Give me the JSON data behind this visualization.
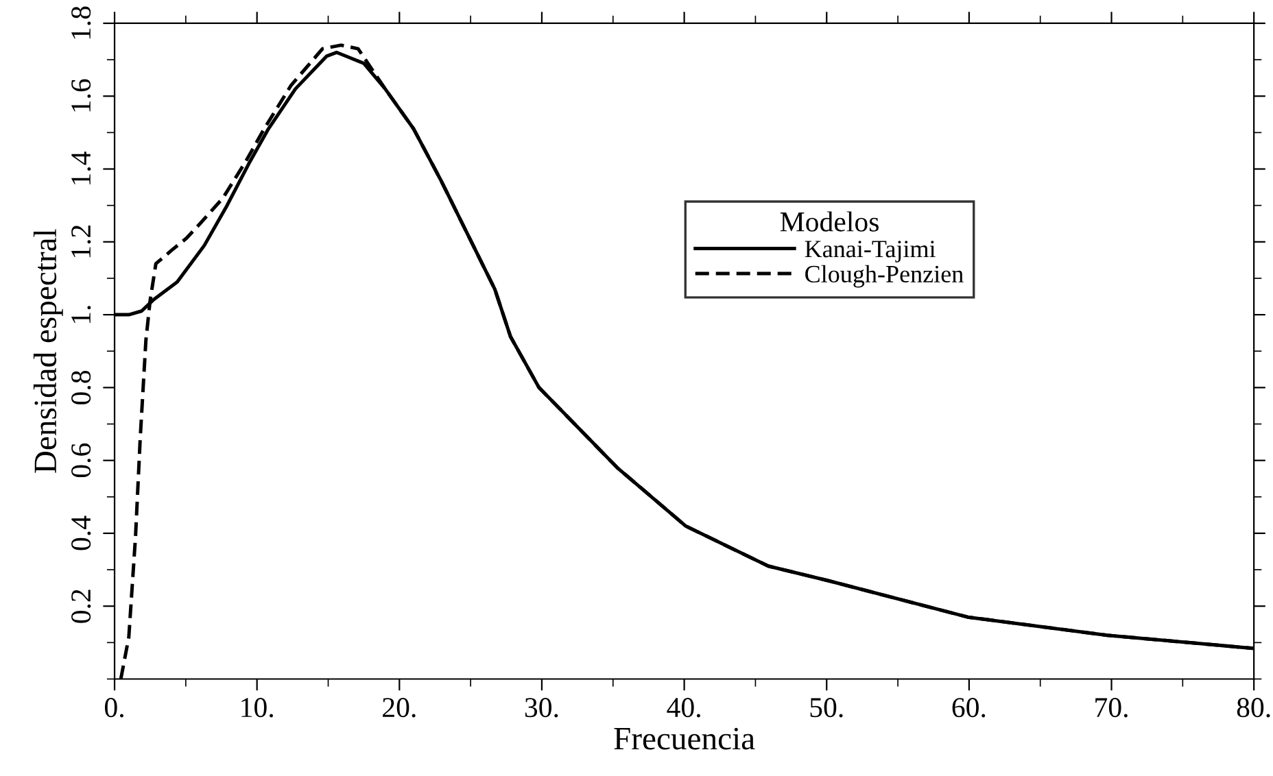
{
  "chart_data": {
    "type": "line",
    "xlabel": "Frecuencia",
    "ylabel": "Densidad espectral",
    "legend_title": "Modelos",
    "xlim": [
      0,
      80
    ],
    "ylim": [
      0,
      1.8
    ],
    "xticks": [
      {
        "value": 0,
        "label": "0."
      },
      {
        "value": 5,
        "label": null
      },
      {
        "value": 10,
        "label": "10."
      },
      {
        "value": 15,
        "label": null
      },
      {
        "value": 20,
        "label": "20."
      },
      {
        "value": 25,
        "label": null
      },
      {
        "value": 30,
        "label": "30."
      },
      {
        "value": 35,
        "label": null
      },
      {
        "value": 40,
        "label": "40."
      },
      {
        "value": 45,
        "label": null
      },
      {
        "value": 50,
        "label": "50."
      },
      {
        "value": 55,
        "label": null
      },
      {
        "value": 60,
        "label": "60."
      },
      {
        "value": 65,
        "label": null
      },
      {
        "value": 70,
        "label": "70."
      },
      {
        "value": 75,
        "label": null
      },
      {
        "value": 80,
        "label": "80."
      }
    ],
    "yticks": [
      {
        "value": 0,
        "label": null
      },
      {
        "value": 0.1,
        "label": null
      },
      0.2,
      {
        "value": 0.3,
        "label": null
      },
      0.4,
      {
        "value": 0.5,
        "label": null
      },
      0.6,
      {
        "value": 0.7,
        "label": null
      },
      0.8,
      {
        "value": 0.9,
        "label": null
      },
      {
        "value": 1.0,
        "label": "1."
      },
      {
        "value": 1.1,
        "label": null
      },
      1.2,
      {
        "value": 1.3,
        "label": null
      },
      1.4,
      {
        "value": 1.5,
        "label": null
      },
      1.6,
      {
        "value": 1.7,
        "label": null
      },
      1.8
    ],
    "legend": "right",
    "grid": false,
    "marker": "none",
    "series": [
      {
        "name": "Kanai-Tajimi",
        "color": "#000000",
        "line_style": "solid",
        "x": [
          0,
          1,
          1.9,
          2.7,
          4.4,
          6.3,
          7.9,
          9.5,
          10.8,
          12.7,
          14.9,
          15.6,
          17.5,
          19.0,
          21.0,
          22.9,
          24.8,
          26.7,
          27.8,
          29.8,
          35.3,
          40.1,
          45.9,
          50.1,
          59.9,
          69.7,
          80
        ],
        "values": [
          1.0,
          1.0,
          1.01,
          1.04,
          1.09,
          1.19,
          1.3,
          1.42,
          1.51,
          1.62,
          1.71,
          1.72,
          1.69,
          1.62,
          1.51,
          1.37,
          1.22,
          1.07,
          0.94,
          0.8,
          0.58,
          0.42,
          0.31,
          0.27,
          0.17,
          0.12,
          0.084
        ]
      },
      {
        "name": "Clough-Penzien",
        "color": "#000000",
        "line_style": "dashed",
        "x": [
          0.44,
          1.0,
          1.47,
          1.8,
          2.2,
          2.5,
          2.9,
          3.2,
          4.1,
          5.05,
          6.0,
          7.6,
          9.2,
          10.5,
          12.4,
          14.6,
          15.9,
          17.1,
          19.0,
          21.0,
          22.9,
          24.8,
          26.7,
          27.8,
          29.8,
          35.3,
          40.1,
          45.9,
          50.1,
          59.9,
          69.7,
          80
        ],
        "values": [
          0,
          0.115,
          0.39,
          0.66,
          0.93,
          1.04,
          1.14,
          1.15,
          1.18,
          1.21,
          1.25,
          1.32,
          1.42,
          1.51,
          1.63,
          1.73,
          1.74,
          1.73,
          1.62,
          1.51,
          1.37,
          1.22,
          1.07,
          0.94,
          0.8,
          0.58,
          0.42,
          0.31,
          0.27,
          0.17,
          0.12,
          0.084
        ]
      }
    ]
  }
}
